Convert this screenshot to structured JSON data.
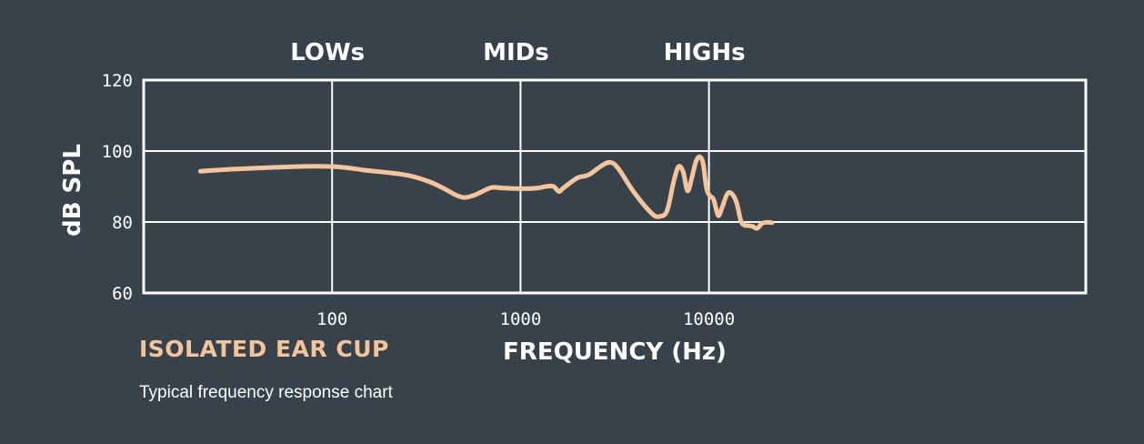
{
  "colors": {
    "background": "#38424b",
    "axes": "#ffffff",
    "grid": "#ffffff",
    "curve": "#f6c49a",
    "title": "#f6c49a",
    "text": "#ffffff"
  },
  "chart_data": {
    "type": "line",
    "title": "ISOLATED EAR CUP",
    "subtitle": "Typical frequency response chart",
    "xlabel": "FREQUENCY (Hz)",
    "ylabel": "dB SPL",
    "x_scale": "log",
    "xlim": [
      10,
      1000000
    ],
    "ylim": [
      60,
      120
    ],
    "x_ticks": [
      100,
      1000,
      10000
    ],
    "x_tick_labels": [
      "100",
      "1000",
      "10000"
    ],
    "y_ticks": [
      60,
      80,
      100,
      120
    ],
    "y_tick_labels": [
      "60",
      "80",
      "100",
      "120"
    ],
    "grid": true,
    "bands": [
      {
        "label": "LOWs",
        "freq": 100
      },
      {
        "label": "MIDs",
        "freq": 1000
      },
      {
        "label": "HIGHs",
        "freq": 10000
      }
    ],
    "series": [
      {
        "name": "",
        "x": [
          20,
          30,
          50,
          80,
          110,
          150,
          200,
          260,
          330,
          400,
          450,
          500,
          550,
          600,
          700,
          800,
          1000,
          1200,
          1400,
          1500,
          1600,
          1700,
          2000,
          2300,
          2700,
          3000,
          3300,
          4000,
          5000,
          5500,
          6000,
          6500,
          6900,
          7300,
          7700,
          8100,
          8500,
          8900,
          9300,
          9700,
          10100,
          10600,
          11200,
          11800,
          12500,
          13200,
          14000,
          14800,
          15400,
          16000,
          17000,
          18000,
          19000,
          20000,
          20800,
          21600
        ],
        "y": [
          94.3,
          94.9,
          95.4,
          95.7,
          95.5,
          94.6,
          93.9,
          93.0,
          91.3,
          89.2,
          87.7,
          86.9,
          87.3,
          88.1,
          89.7,
          89.6,
          89.4,
          89.5,
          90.1,
          90.0,
          88.6,
          89.7,
          92.4,
          93.3,
          95.9,
          96.8,
          95.1,
          88.4,
          82.3,
          81.6,
          83.2,
          91.4,
          95.6,
          94.1,
          88.8,
          92.3,
          96.8,
          98.4,
          96.6,
          89.6,
          87.4,
          86.3,
          81.8,
          84.4,
          87.9,
          88.0,
          85.5,
          80.2,
          79.1,
          79.0,
          78.8,
          78.2,
          79.5,
          79.9,
          79.9,
          79.8
        ]
      }
    ]
  }
}
